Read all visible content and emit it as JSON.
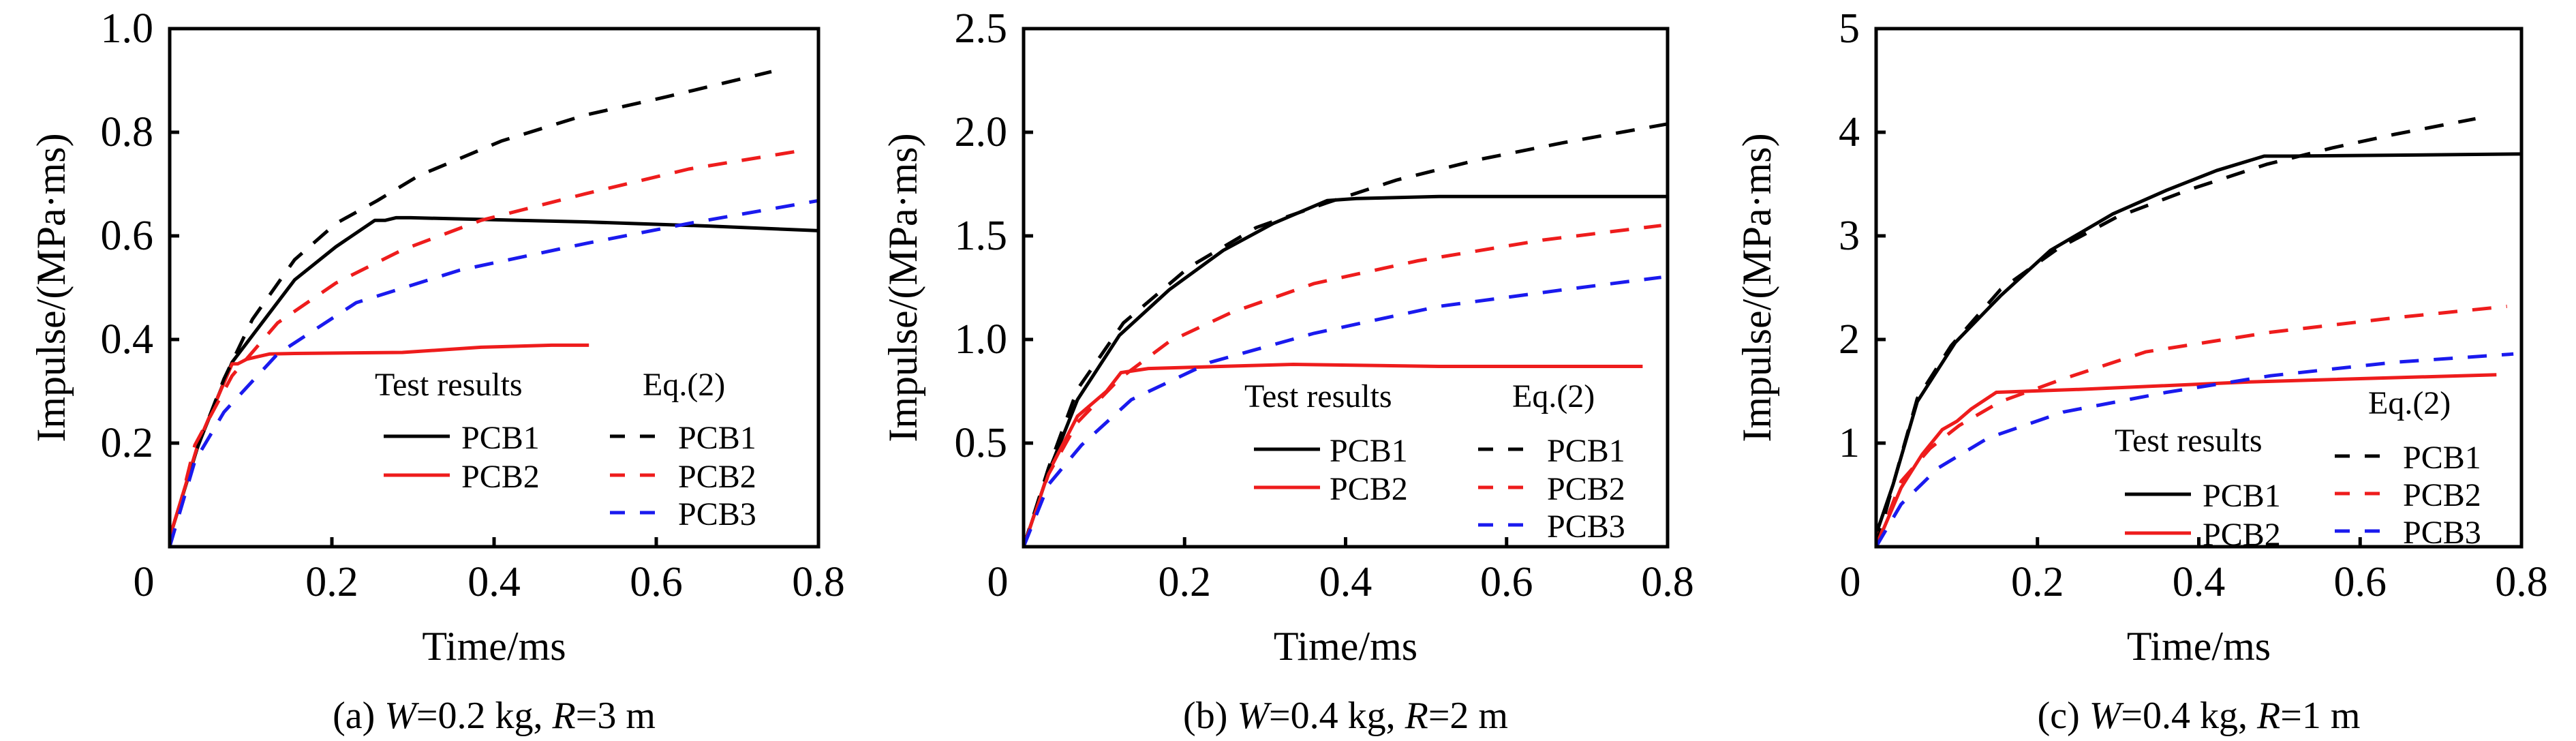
{
  "figure": {
    "colors": {
      "black": "#000000",
      "red": "#ee1c1c",
      "blue": "#1a1aee"
    }
  },
  "chart_data": [
    {
      "type": "line",
      "id": "a",
      "caption": {
        "prefix": "(a) ",
        "W_sym": "W",
        "W_val": "=0.2 kg, ",
        "R_sym": "R",
        "R_val": "=3 m"
      },
      "xlabel": "Time/ms",
      "ylabel": "Impulse/(MPa·ms)",
      "xlim": [
        0,
        0.8
      ],
      "ylim": [
        0,
        1.0
      ],
      "xticks": [
        0.2,
        0.4,
        0.6,
        0.8
      ],
      "xtick_labels": [
        "0.2",
        "0.4",
        "0.6",
        "0.8"
      ],
      "origin_label": "0",
      "yticks": [
        0.2,
        0.4,
        0.6,
        0.8,
        1.0
      ],
      "ytick_labels": [
        "0.2",
        "0.4",
        "0.6",
        "0.8",
        "1.0"
      ],
      "grid": false,
      "legend": {
        "placement": "bottom-right",
        "group1_title": "Test results",
        "group2_title": "Eq.(2)"
      },
      "series": [
        {
          "name": "PCB1",
          "group": "Test results",
          "style": "solid",
          "color": "black",
          "x": [
            0,
            0.036,
            0.077,
            0.154,
            0.205,
            0.253,
            0.266,
            0.279,
            0.297,
            0.512,
            0.665,
            0.8
          ],
          "y": [
            0.018,
            0.2,
            0.356,
            0.515,
            0.579,
            0.63,
            0.63,
            0.635,
            0.635,
            0.627,
            0.619,
            0.61
          ]
        },
        {
          "name": "PCB2",
          "group": "Test results",
          "style": "solid",
          "color": "red",
          "x": [
            0,
            0.036,
            0.077,
            0.084,
            0.095,
            0.123,
            0.154,
            0.287,
            0.384,
            0.471,
            0.517
          ],
          "y": [
            0.018,
            0.203,
            0.353,
            0.353,
            0.362,
            0.372,
            0.373,
            0.375,
            0.385,
            0.389,
            0.389
          ]
        },
        {
          "name": "PCB1",
          "group": "Eq.(2)",
          "style": "dashed",
          "color": "black",
          "x": [
            0,
            0.026,
            0.067,
            0.102,
            0.154,
            0.205,
            0.256,
            0.307,
            0.409,
            0.512,
            0.614,
            0.742
          ],
          "y": [
            0,
            0.158,
            0.324,
            0.439,
            0.554,
            0.624,
            0.668,
            0.716,
            0.783,
            0.833,
            0.869,
            0.917
          ]
        },
        {
          "name": "PCB2",
          "group": "Eq.(2)",
          "style": "dashed",
          "color": "red",
          "x": [
            0,
            0.031,
            0.077,
            0.133,
            0.205,
            0.287,
            0.384,
            0.512,
            0.64,
            0.773
          ],
          "y": [
            0,
            0.196,
            0.33,
            0.432,
            0.509,
            0.573,
            0.63,
            0.681,
            0.729,
            0.763
          ]
        },
        {
          "name": "PCB3",
          "group": "Eq.(2)",
          "style": "dashed",
          "color": "blue",
          "x": [
            0,
            0.031,
            0.067,
            0.133,
            0.23,
            0.358,
            0.512,
            0.64,
            0.8
          ],
          "y": [
            0,
            0.165,
            0.26,
            0.372,
            0.471,
            0.534,
            0.585,
            0.624,
            0.668
          ]
        }
      ]
    },
    {
      "type": "line",
      "id": "b",
      "caption": {
        "prefix": "(b) ",
        "W_sym": "W",
        "W_val": "=0.4 kg, ",
        "R_sym": "R",
        "R_val": "=2 m"
      },
      "xlabel": "Time/ms",
      "ylabel": "Impulse/(MPa·ms)",
      "xlim": [
        0,
        0.8
      ],
      "ylim": [
        0,
        2.5
      ],
      "xticks": [
        0.2,
        0.4,
        0.6,
        0.8
      ],
      "xtick_labels": [
        "0.2",
        "0.4",
        "0.6",
        "0.8"
      ],
      "origin_label": "0",
      "yticks": [
        0.5,
        1.0,
        1.5,
        2.0,
        2.5
      ],
      "ytick_labels": [
        "0.5",
        "1.0",
        "1.5",
        "2.0",
        "2.5"
      ],
      "grid": false,
      "legend": {
        "placement": "bottom-right",
        "group1_title": "Test results",
        "group2_title": "Eq.(2)"
      },
      "series": [
        {
          "name": "PCB1",
          "group": "Test results",
          "style": "solid",
          "color": "black",
          "x": [
            0,
            0.031,
            0.067,
            0.119,
            0.181,
            0.248,
            0.31,
            0.377,
            0.413,
            0.516,
            0.8
          ],
          "y": [
            0,
            0.36,
            0.71,
            1.02,
            1.24,
            1.43,
            1.56,
            1.67,
            1.68,
            1.69,
            1.69
          ]
        },
        {
          "name": "PCB2",
          "group": "Test results",
          "style": "solid",
          "color": "red",
          "x": [
            0,
            0.031,
            0.067,
            0.103,
            0.121,
            0.155,
            0.335,
            0.516,
            0.769
          ],
          "y": [
            0,
            0.36,
            0.63,
            0.75,
            0.84,
            0.86,
            0.88,
            0.87,
            0.87
          ]
        },
        {
          "name": "PCB1",
          "group": "Eq.(2)",
          "style": "dashed",
          "color": "black",
          "x": [
            0,
            0.031,
            0.067,
            0.124,
            0.206,
            0.289,
            0.377,
            0.464,
            0.568,
            0.671,
            0.8
          ],
          "y": [
            0,
            0.38,
            0.76,
            1.08,
            1.35,
            1.54,
            1.66,
            1.77,
            1.87,
            1.95,
            2.04
          ]
        },
        {
          "name": "PCB2",
          "group": "Eq.(2)",
          "style": "dashed",
          "color": "red",
          "x": [
            0,
            0.031,
            0.067,
            0.119,
            0.181,
            0.258,
            0.361,
            0.49,
            0.645,
            0.792
          ],
          "y": [
            0,
            0.35,
            0.6,
            0.81,
            0.99,
            1.13,
            1.27,
            1.38,
            1.48,
            1.55
          ]
        },
        {
          "name": "PCB3",
          "group": "Eq.(2)",
          "style": "dashed",
          "color": "blue",
          "x": [
            0,
            0.031,
            0.072,
            0.134,
            0.232,
            0.361,
            0.516,
            0.671,
            0.792
          ],
          "y": [
            0,
            0.3,
            0.49,
            0.71,
            0.89,
            1.03,
            1.16,
            1.24,
            1.3
          ]
        }
      ]
    },
    {
      "type": "line",
      "id": "c",
      "caption": {
        "prefix": "(c) ",
        "W_sym": "W",
        "W_val": "=0.4 kg, ",
        "R_sym": "R",
        "R_val": "=1 m"
      },
      "xlabel": "Time/ms",
      "ylabel": "Impulse/(MPa·ms)",
      "xlim": [
        0,
        0.8
      ],
      "ylim": [
        0,
        5
      ],
      "xticks": [
        0.2,
        0.4,
        0.6,
        0.8
      ],
      "xtick_labels": [
        "0.2",
        "0.4",
        "0.6",
        "0.8"
      ],
      "origin_label": "0",
      "yticks": [
        1,
        2,
        3,
        4,
        5
      ],
      "ytick_labels": [
        "1",
        "2",
        "3",
        "4",
        "5"
      ],
      "grid": false,
      "legend": {
        "placement": "bottom-right",
        "group1_title": "Test results",
        "group2_title": "Eq.(2)"
      },
      "series": [
        {
          "name": "PCB1",
          "group": "Test results",
          "style": "solid",
          "color": "black",
          "x": [
            0,
            0.021,
            0.051,
            0.098,
            0.154,
            0.216,
            0.293,
            0.36,
            0.422,
            0.481,
            0.514,
            0.8
          ],
          "y": [
            0.12,
            0.6,
            1.4,
            1.97,
            2.42,
            2.86,
            3.21,
            3.44,
            3.63,
            3.77,
            3.77,
            3.79
          ]
        },
        {
          "name": "PCB2",
          "group": "Test results",
          "style": "solid",
          "color": "red",
          "x": [
            0,
            0.008,
            0.031,
            0.057,
            0.082,
            0.1,
            0.118,
            0.149,
            0.257,
            0.463,
            0.769
          ],
          "y": [
            0.12,
            0.15,
            0.57,
            0.89,
            1.13,
            1.21,
            1.33,
            1.49,
            1.52,
            1.59,
            1.66
          ]
        },
        {
          "name": "PCB1",
          "group": "Eq.(2)",
          "style": "dashed",
          "color": "black",
          "x": [
            0,
            0.021,
            0.051,
            0.093,
            0.154,
            0.226,
            0.298,
            0.386,
            0.484,
            0.566,
            0.643,
            0.743
          ],
          "y": [
            0,
            0.6,
            1.43,
            1.94,
            2.48,
            2.88,
            3.18,
            3.44,
            3.69,
            3.85,
            3.98,
            4.13
          ]
        },
        {
          "name": "PCB2",
          "group": "Eq.(2)",
          "style": "dashed",
          "color": "red",
          "x": [
            0,
            0.031,
            0.067,
            0.103,
            0.154,
            0.232,
            0.334,
            0.489,
            0.643,
            0.782
          ],
          "y": [
            0,
            0.63,
            0.95,
            1.17,
            1.4,
            1.62,
            1.88,
            2.07,
            2.21,
            2.32
          ]
        },
        {
          "name": "PCB3",
          "group": "Eq.(2)",
          "style": "dashed",
          "color": "blue",
          "x": [
            0,
            0.031,
            0.077,
            0.139,
            0.232,
            0.36,
            0.489,
            0.643,
            0.79
          ],
          "y": [
            0,
            0.41,
            0.76,
            1.05,
            1.3,
            1.49,
            1.65,
            1.78,
            1.86
          ]
        }
      ]
    }
  ]
}
